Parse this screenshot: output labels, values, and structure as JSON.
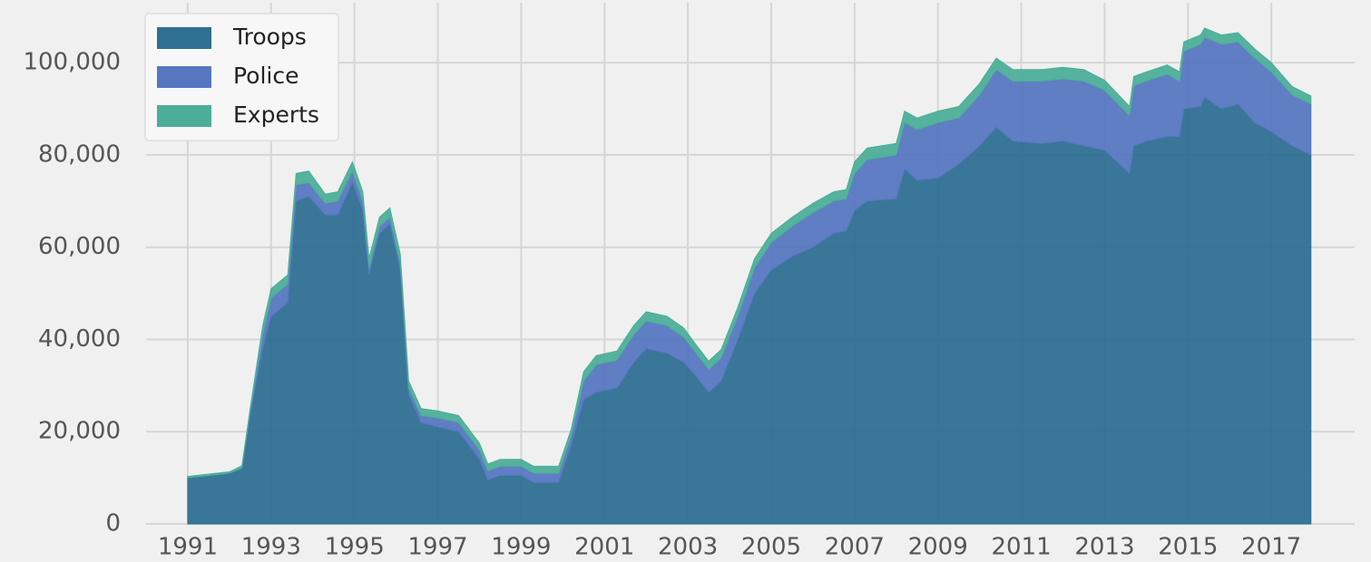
{
  "chart_data": {
    "type": "stacked_area",
    "legend": "upper left",
    "grid": true,
    "xlim": [
      1990,
      2019
    ],
    "ylim": [
      0,
      113000
    ],
    "xticks": [
      1991,
      1993,
      1995,
      1997,
      1999,
      2001,
      2003,
      2005,
      2007,
      2009,
      2011,
      2013,
      2015,
      2017
    ],
    "yticks": [
      0,
      {
        "value": 20000,
        "label": "20,000"
      },
      {
        "value": 40000,
        "label": "40,000"
      },
      {
        "value": 60000,
        "label": "60,000"
      },
      {
        "value": 80000,
        "label": "80,000"
      },
      {
        "value": 100000,
        "label": "100,000"
      }
    ],
    "x": [
      1991.0,
      1991.5,
      1992.0,
      1992.3,
      1992.5,
      1992.8,
      1993.0,
      1993.4,
      1993.6,
      1993.9,
      1994.3,
      1994.6,
      1994.95,
      1995.2,
      1995.35,
      1995.6,
      1995.85,
      1996.1,
      1996.3,
      1996.6,
      1997.0,
      1997.5,
      1998.0,
      1998.2,
      1998.5,
      1999.0,
      1999.3,
      1999.9,
      2000.2,
      2000.5,
      2000.8,
      2001.3,
      2001.7,
      2002.0,
      2002.5,
      2002.9,
      2003.2,
      2003.5,
      2003.8,
      2004.2,
      2004.6,
      2005.0,
      2005.5,
      2006.0,
      2006.5,
      2006.8,
      2007.0,
      2007.3,
      2008.0,
      2008.2,
      2008.5,
      2009.0,
      2009.5,
      2010.0,
      2010.4,
      2010.8,
      2011.5,
      2012.0,
      2012.5,
      2013.0,
      2013.6,
      2013.7,
      2014.0,
      2014.5,
      2014.8,
      2014.9,
      2015.3,
      2015.4,
      2015.8,
      2016.2,
      2016.6,
      2017.0,
      2017.5,
      2017.95
    ],
    "series": [
      {
        "name": "Troops",
        "color": "#2f6f92",
        "values": [
          10000,
          10500,
          11000,
          12000,
          24000,
          38000,
          45000,
          48000,
          70000,
          71000,
          67000,
          67000,
          74000,
          68000,
          54000,
          63000,
          65000,
          55000,
          28000,
          22000,
          21000,
          20000,
          14000,
          9500,
          10500,
          10500,
          9000,
          9000,
          17000,
          27000,
          28500,
          29500,
          35000,
          38000,
          37000,
          35000,
          32000,
          28500,
          31000,
          40000,
          50000,
          55000,
          58000,
          60000,
          63000,
          63500,
          68000,
          70000,
          70500,
          77000,
          74500,
          75000,
          78000,
          82000,
          86000,
          83000,
          82500,
          83000,
          82000,
          81000,
          76000,
          82000,
          83000,
          84000,
          84000,
          90000,
          90500,
          92500,
          90000,
          91000,
          87000,
          85000,
          82000,
          80000
        ]
      },
      {
        "name": "Police",
        "color": "#5677c0",
        "values": [
          0,
          0,
          0,
          200,
          500,
          3000,
          4000,
          4000,
          3500,
          3000,
          2500,
          3000,
          2500,
          2000,
          1500,
          1500,
          1500,
          1500,
          1500,
          1500,
          2000,
          2000,
          2000,
          2000,
          2000,
          2000,
          2000,
          2000,
          2000,
          4000,
          6000,
          6000,
          6000,
          6000,
          6000,
          5500,
          5000,
          5000,
          5000,
          5000,
          5500,
          6000,
          6500,
          7500,
          7000,
          7000,
          8000,
          9000,
          9500,
          10000,
          11000,
          12000,
          10000,
          11000,
          12500,
          13000,
          13500,
          13500,
          14000,
          13000,
          12500,
          13000,
          13000,
          13500,
          12000,
          12500,
          13500,
          13000,
          14000,
          13500,
          14000,
          13000,
          11000,
          11000
        ]
      },
      {
        "name": "Experts",
        "color": "#4cae98",
        "values": [
          300,
          300,
          300,
          400,
          700,
          2000,
          2000,
          2000,
          2500,
          2500,
          2000,
          2000,
          2000,
          2000,
          2000,
          2000,
          2000,
          2000,
          1500,
          1500,
          1500,
          1500,
          1500,
          1500,
          1500,
          1500,
          1500,
          1500,
          1500,
          2000,
          2000,
          2000,
          2000,
          2000,
          2000,
          2000,
          1800,
          1800,
          1800,
          2000,
          2000,
          2000,
          2000,
          2000,
          2000,
          2000,
          2500,
          2500,
          2500,
          2500,
          2500,
          2500,
          2500,
          2500,
          2500,
          2500,
          2500,
          2500,
          2500,
          2200,
          2000,
          2000,
          2000,
          2000,
          2000,
          2000,
          2000,
          2000,
          2000,
          2000,
          2000,
          2000,
          1800,
          1800
        ]
      }
    ]
  }
}
